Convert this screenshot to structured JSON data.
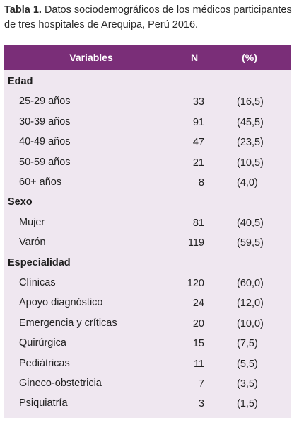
{
  "caption": {
    "label": "Tabla 1.",
    "text": " Datos sociodemográficos de los médicos participantes de tres hospitales de Arequipa, Perú 2016."
  },
  "header": {
    "variables": "Variables",
    "n": "N",
    "pct": "(%)"
  },
  "rows": [
    {
      "type": "section",
      "label": "Edad"
    },
    {
      "type": "item",
      "label": "25-29 años",
      "n": "33",
      "pct": "(16,5)"
    },
    {
      "type": "item",
      "label": "30-39 años",
      "n": "91",
      "pct": "(45,5)"
    },
    {
      "type": "item",
      "label": "40-49 años",
      "n": "47",
      "pct": "(23,5)"
    },
    {
      "type": "item",
      "label": "50-59 años",
      "n": "21",
      "pct": "(10,5)"
    },
    {
      "type": "item",
      "label": "60+ años",
      "n": "8",
      "pct": "(4,0)"
    },
    {
      "type": "section",
      "label": "Sexo"
    },
    {
      "type": "item",
      "label": "Mujer",
      "n": "81",
      "pct": "(40,5)"
    },
    {
      "type": "item",
      "label": "Varón",
      "n": "119",
      "pct": "(59,5)"
    },
    {
      "type": "section",
      "label": "Especialidad"
    },
    {
      "type": "item",
      "label": "Clínicas",
      "n": "120",
      "pct": "(60,0)"
    },
    {
      "type": "item",
      "label": "Apoyo diagnóstico",
      "n": "24",
      "pct": "(12,0)"
    },
    {
      "type": "item",
      "label": "Emergencia y críticas",
      "n": "20",
      "pct": "(10,0)"
    },
    {
      "type": "item",
      "label": "Quirúrgica",
      "n": "15",
      "pct": "(7,5)"
    },
    {
      "type": "item",
      "label": "Pediátricas",
      "n": "11",
      "pct": "(5,5)"
    },
    {
      "type": "item",
      "label": "Gineco-obstetricia",
      "n": "7",
      "pct": "(3,5)"
    },
    {
      "type": "item",
      "label": "Psiquiatría",
      "n": "3",
      "pct": "(1,5)"
    }
  ]
}
